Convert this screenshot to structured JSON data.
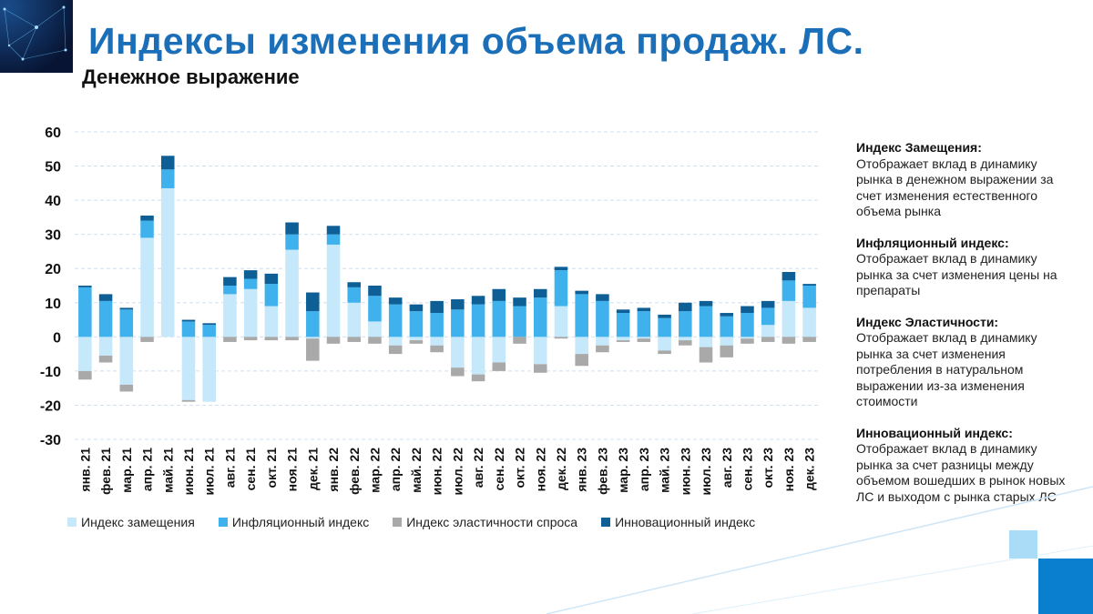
{
  "title": "Индексы изменения объема продаж. ЛС.",
  "subtitle": "Денежное выражение",
  "notes": [
    {
      "title": "Индекс Замещения:",
      "text": "Отображает вклад в динамику рынка в денежном выражении за счет изменения естественного объема рынка"
    },
    {
      "title": "Инфляционный индекс:",
      "text": "Отображает вклад в динамику рынка за счет изменения цены на препараты"
    },
    {
      "title": "Индекс Эластичности:",
      "text": "Отображает вклад в динамику рынка за счет изменения потребления в натуральном выражении из-за изменения стоимости"
    },
    {
      "title": "Инновационный индекс:",
      "text": "Отображает вклад в динамику рынка за счет разницы между объемом вошедших в рынок новых ЛС и выходом с рынка старых ЛС"
    }
  ],
  "colors": {
    "title": "#1b6fb8",
    "grid": "#cfe0f0",
    "deco_light": "#aadcf7",
    "deco_dark": "#0a7fd0"
  },
  "chart_data": {
    "type": "bar",
    "stacked": true,
    "ylim": [
      -30,
      60
    ],
    "yticks": [
      60,
      50,
      40,
      30,
      20,
      10,
      0,
      -10,
      -20,
      -30
    ],
    "grid": true,
    "legend_position": "bottom",
    "categories": [
      "янв. 21",
      "фев. 21",
      "мар. 21",
      "апр. 21",
      "май. 21",
      "июн. 21",
      "июл. 21",
      "авг. 21",
      "сен. 21",
      "окт. 21",
      "ноя. 21",
      "дек. 21",
      "янв. 22",
      "фев. 22",
      "мар. 22",
      "апр. 22",
      "май. 22",
      "июн. 22",
      "июл. 22",
      "авг. 22",
      "сен. 22",
      "окт. 22",
      "ноя. 22",
      "дек. 22",
      "янв. 23",
      "фев. 23",
      "мар. 23",
      "апр. 23",
      "май. 23",
      "июн. 23",
      "июл. 23",
      "авг. 23",
      "сен. 23",
      "окт. 23",
      "ноя. 23",
      "дек. 23"
    ],
    "series": [
      {
        "name": "Индекс замещения",
        "color": "#c5e8fa",
        "values": [
          -10,
          -5.5,
          -14,
          29,
          43.5,
          -18.5,
          -19,
          12.5,
          14,
          9,
          25.5,
          -0.5,
          27,
          10,
          4.5,
          -2.5,
          -1,
          -2.5,
          -9,
          -11,
          -7.5,
          0,
          -8,
          9,
          -5,
          -2.5,
          -1,
          -0.5,
          -4,
          -1,
          -3,
          -2.5,
          -0.5,
          3.5,
          10.5,
          8.5
        ]
      },
      {
        "name": "Инфляционный индекс",
        "color": "#3fb2ee",
        "values": [
          14.5,
          10.5,
          8,
          5,
          5.5,
          4.5,
          3.5,
          2.5,
          3,
          6.5,
          4.5,
          7.5,
          3,
          4.5,
          7.5,
          9.5,
          7.5,
          7,
          8,
          9.5,
          10.5,
          9,
          11.5,
          10.5,
          12.5,
          10.5,
          7,
          7.5,
          5.5,
          7.5,
          9,
          6,
          7,
          5,
          6,
          6.5
        ]
      },
      {
        "name": "Индекс эластичности спроса",
        "color": "#a9a9a9",
        "values": [
          -2.5,
          -2,
          -2,
          -1.5,
          0,
          -0.5,
          0,
          -1.5,
          -1,
          -1,
          -1,
          -6.5,
          -2,
          -1.5,
          -2,
          -2.5,
          -1,
          -2,
          -2.5,
          -2,
          -2.5,
          -2,
          -2.5,
          -0.5,
          -3.5,
          -2,
          -0.5,
          -1,
          -1,
          -1.5,
          -4.5,
          -3.5,
          -1.5,
          -1.5,
          -2,
          -1.5
        ]
      },
      {
        "name": "Инновационный индекс",
        "color": "#0d5f95",
        "values": [
          0.5,
          2,
          0.5,
          1.5,
          4,
          0.5,
          0.5,
          2.5,
          2.5,
          3,
          3.5,
          5.5,
          2.5,
          1.5,
          3,
          2,
          2,
          3.5,
          3,
          2.5,
          3.5,
          2.5,
          2.5,
          1,
          1,
          2,
          1,
          1,
          1,
          2.5,
          1.5,
          1,
          2,
          2,
          2.5,
          0.5
        ]
      }
    ]
  }
}
